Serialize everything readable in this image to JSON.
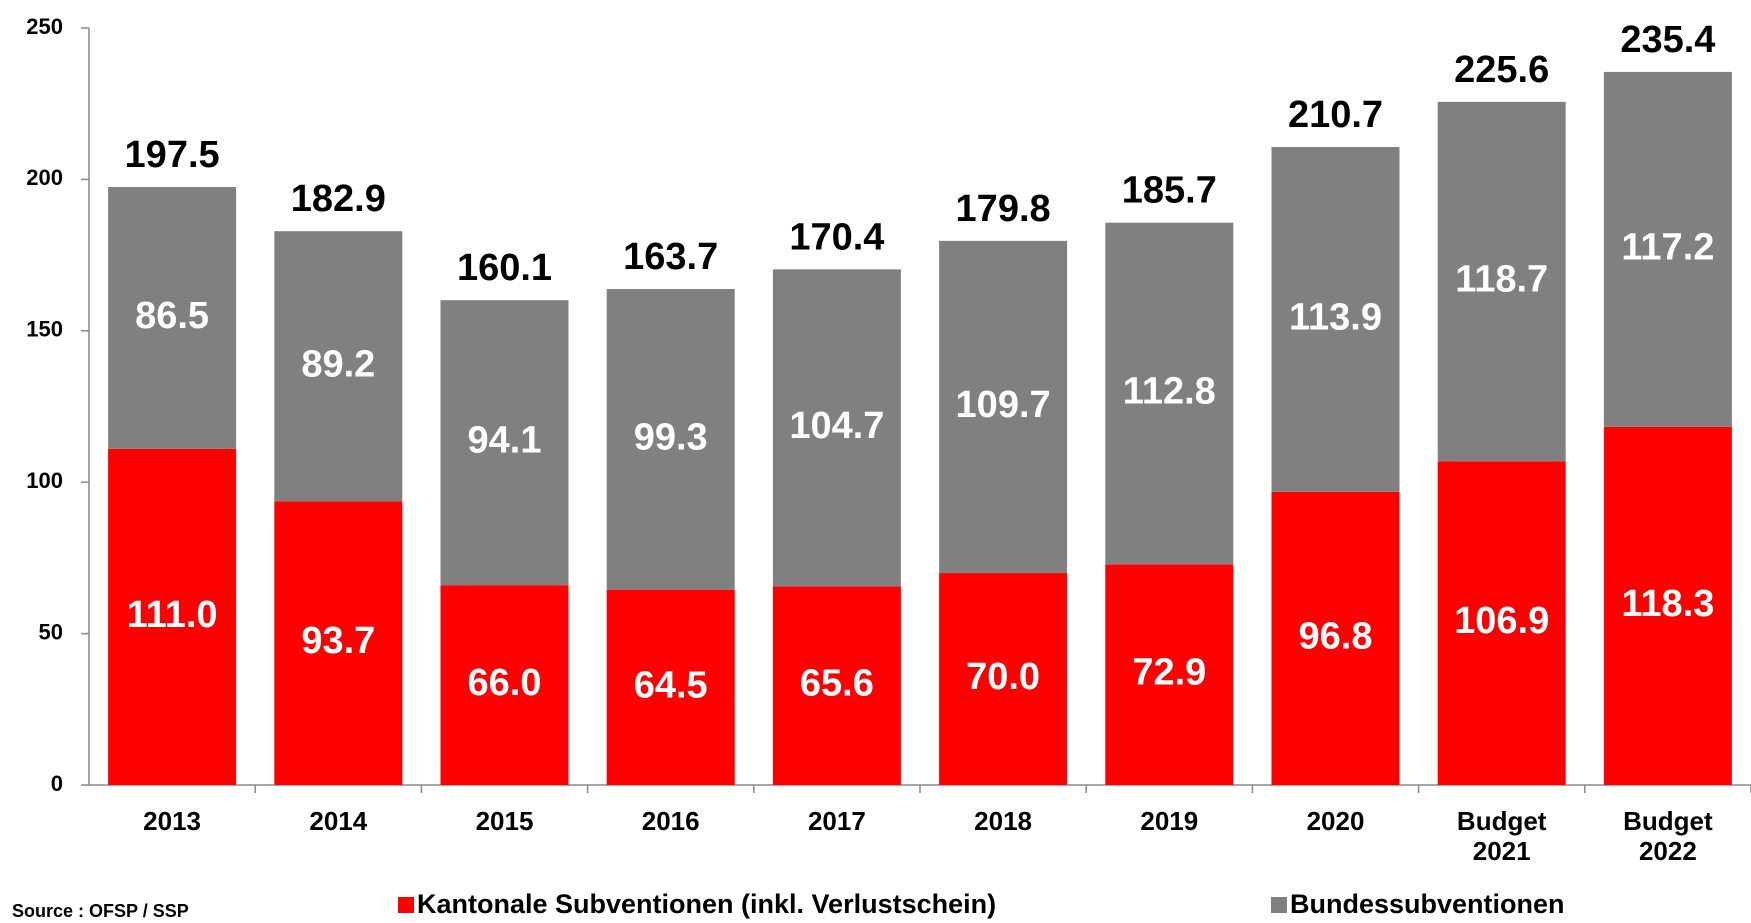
{
  "chart_data": {
    "type": "stacked_bar",
    "categories": [
      "2013",
      "2014",
      "2015",
      "2016",
      "2017",
      "2018",
      "2019",
      "2020",
      "Budget\n2021",
      "Budget\n2022"
    ],
    "series": [
      {
        "name": "Kantonale Subventionen (inkl. Verlustschein)",
        "color": "#ff0000",
        "values": [
          111.0,
          93.7,
          66.0,
          64.5,
          65.6,
          70.0,
          72.9,
          96.8,
          106.9,
          118.3
        ],
        "value_labels": [
          "111.0",
          "93.7",
          "66.0",
          "64.5",
          "65.6",
          "70.0",
          "72.9",
          "96.8",
          "106.9",
          "118.3"
        ]
      },
      {
        "name": "Bundessubventionen",
        "color": "#808080",
        "values": [
          86.5,
          89.2,
          94.1,
          99.3,
          104.7,
          109.7,
          112.8,
          113.9,
          118.7,
          117.2
        ]
      }
    ],
    "totals": [
      197.5,
      182.9,
      160.1,
      163.7,
      170.4,
      179.8,
      185.7,
      210.7,
      225.6,
      235.4
    ],
    "ylim": [
      0,
      250
    ],
    "yticks": [
      0,
      50,
      100,
      150,
      200,
      250
    ],
    "source": "Source : OFSP / SSP"
  }
}
